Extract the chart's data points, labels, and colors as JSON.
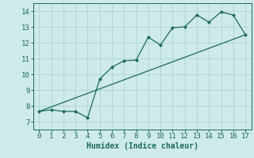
{
  "xlabel": "Humidex (Indice chaleur)",
  "ylabel": "",
  "xlim": [
    -0.5,
    17.5
  ],
  "ylim": [
    6.5,
    14.5
  ],
  "xticks": [
    0,
    1,
    2,
    3,
    4,
    5,
    6,
    7,
    8,
    9,
    10,
    11,
    12,
    13,
    14,
    15,
    16,
    17
  ],
  "yticks": [
    7,
    8,
    9,
    10,
    11,
    12,
    13,
    14
  ],
  "bg_color": "#ceeaea",
  "grid_color": "#aed4d4",
  "line_color": "#1a6b5a",
  "curve_x": [
    0,
    1,
    2,
    3,
    4,
    5,
    6,
    7,
    8,
    9,
    10,
    11,
    12,
    13,
    14,
    15,
    16,
    17
  ],
  "curve_y": [
    7.65,
    7.75,
    7.65,
    7.65,
    7.25,
    9.7,
    10.45,
    10.85,
    10.9,
    12.35,
    11.85,
    12.95,
    13.0,
    13.75,
    13.3,
    13.95,
    13.75,
    12.5
  ],
  "line_x": [
    0,
    17
  ],
  "line_y": [
    7.65,
    12.5
  ],
  "xlabel_fontsize": 7,
  "tick_fontsize": 6.5
}
